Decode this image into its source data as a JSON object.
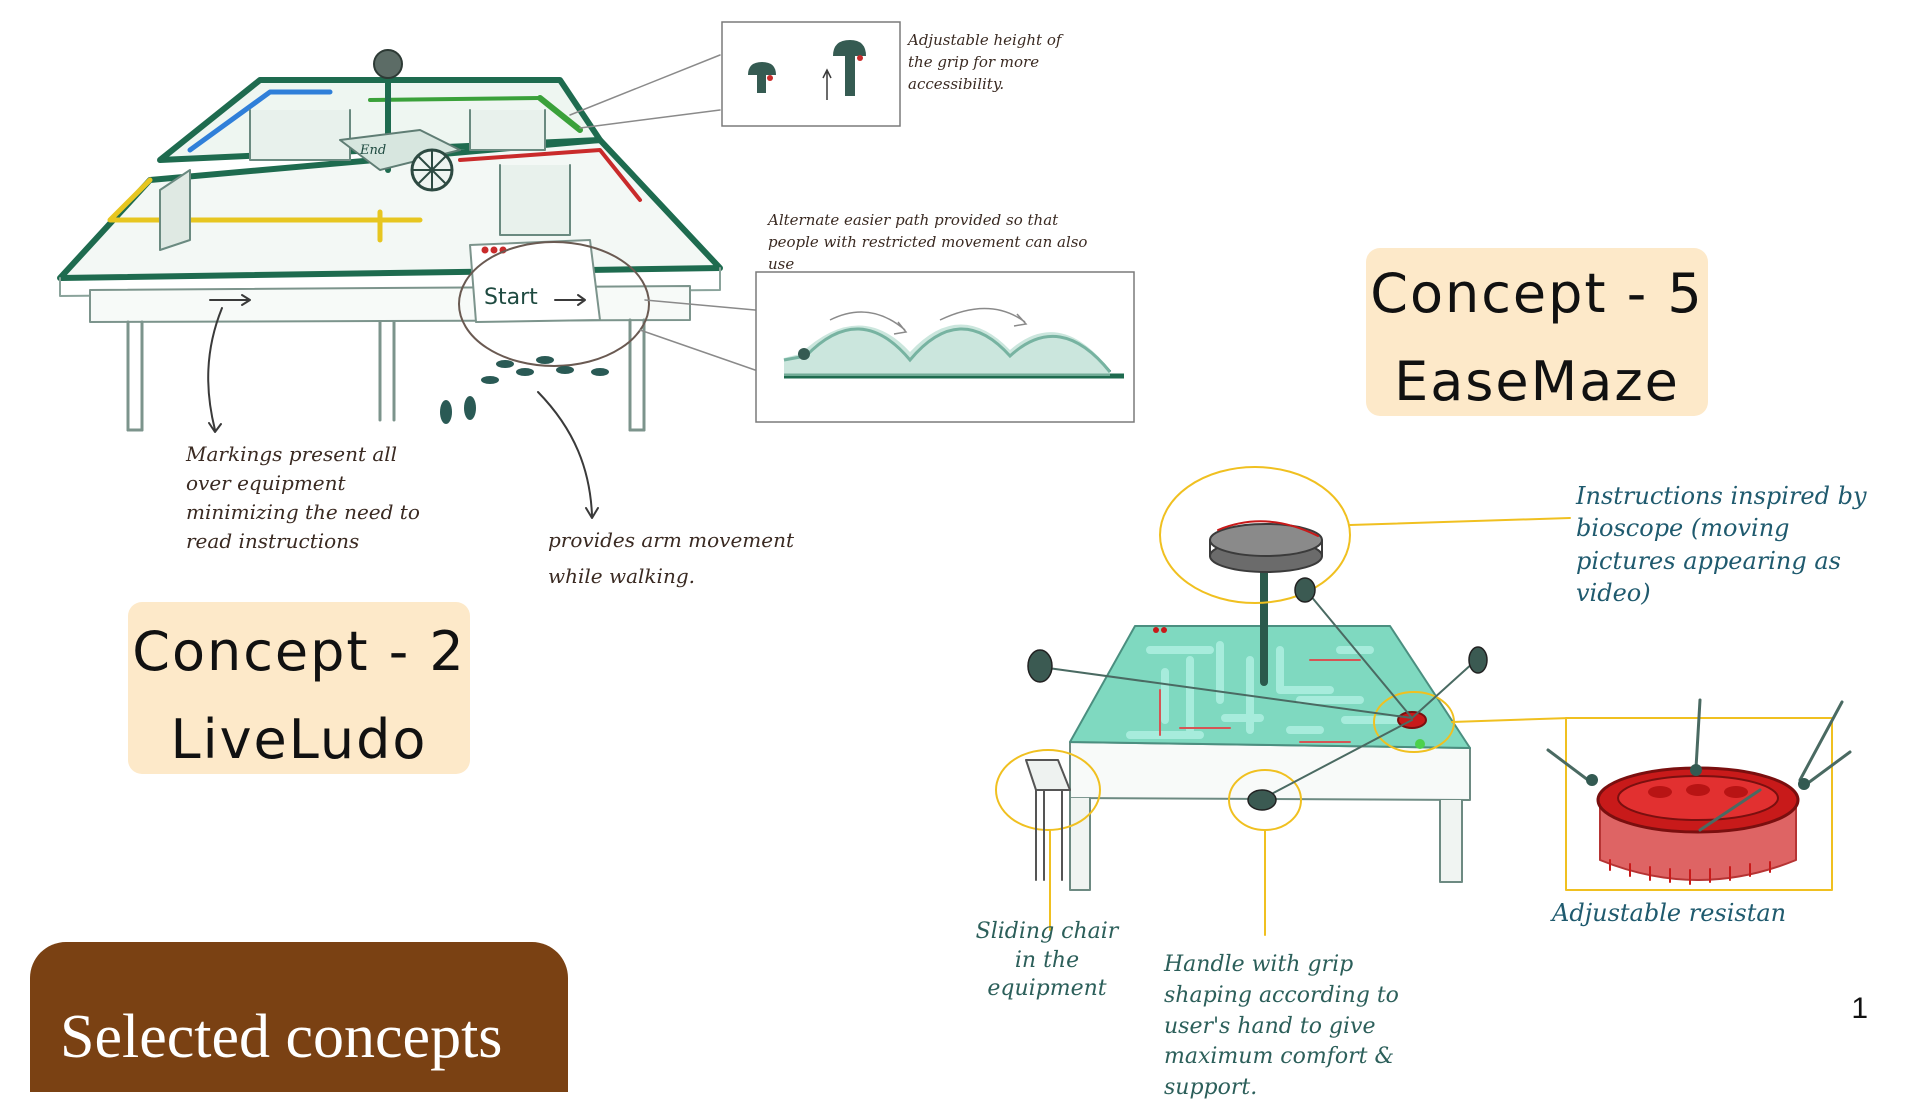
{
  "slide": {
    "title": "Selected concepts",
    "page_number": "1"
  },
  "concepts": [
    {
      "number_label": "Concept - 2",
      "name": "LiveLudo"
    },
    {
      "number_label": "Concept - 5",
      "name": "EaseMaze"
    }
  ],
  "liveludo_annotations": {
    "grip": "Adjustable height of the grip for more accessibility.",
    "alternate_path": "Alternate easier path provided so that people with restricted movement can also use",
    "markings": "Markings present all over equipment minimizing the need to read instructions",
    "arm_movement": "provides arm movement while walking.",
    "start_label": "Start",
    "end_label": "End"
  },
  "easemaze_annotations": {
    "instructions": "Instructions inspired by bioscope (moving pictures appearing as video)",
    "resistance": "Adjustable resistan",
    "chair": "Sliding chair in the equipment",
    "handle": "Handle with grip shaping according to user's hand to give maximum comfort & support."
  },
  "colors": {
    "card_bg": "#fde9c9",
    "tab_bg": "#7a4113",
    "sketch_green": "#1e6b4f",
    "maze_teal": "#7fd9c0",
    "callout_yellow": "#f0c020",
    "resistance_red": "#c81a1a"
  }
}
